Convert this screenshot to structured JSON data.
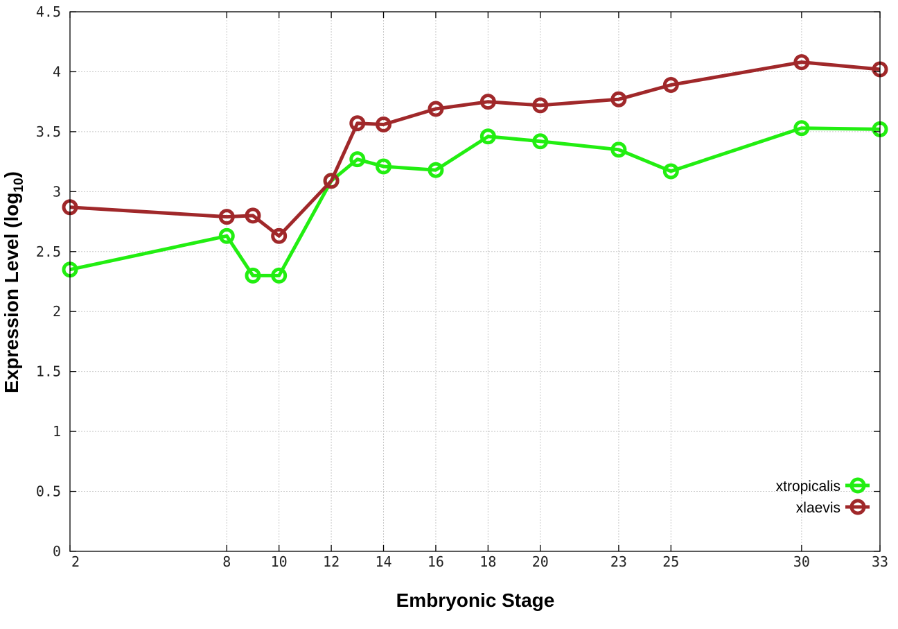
{
  "chart_data": {
    "type": "line",
    "title": "",
    "xlabel": "Embryonic Stage",
    "ylabel": "Expression Level (log",
    "ylabel_sub": "10",
    "ylabel_end": ")",
    "x": [
      2,
      8,
      9,
      10,
      12,
      13,
      14,
      16,
      18,
      20,
      23,
      25,
      30,
      33
    ],
    "x_tick_values": [
      2,
      8,
      10,
      12,
      14,
      16,
      18,
      20,
      23,
      25,
      30,
      33
    ],
    "x_tick_labels": [
      "2",
      "8",
      "10",
      "12",
      "14",
      "16",
      "18",
      "20",
      "23",
      "25",
      "30",
      "33"
    ],
    "xlim": [
      2,
      33
    ],
    "ylim": [
      0,
      4.5
    ],
    "y_tick_values": [
      0,
      0.5,
      1,
      1.5,
      2,
      2.5,
      3,
      3.5,
      4,
      4.5
    ],
    "y_tick_labels": [
      "0",
      "0.5",
      "1",
      "1.5",
      "2",
      "2.5",
      "3",
      "3.5",
      "4",
      "4.5"
    ],
    "grid": true,
    "legend_position": "bottom-right",
    "series": [
      {
        "name": "xtropicalis",
        "color": "#22ee11",
        "marker": "open-circle",
        "values": [
          2.35,
          2.63,
          2.3,
          2.3,
          3.09,
          3.27,
          3.21,
          3.18,
          3.46,
          3.42,
          3.35,
          3.17,
          3.53,
          3.52
        ]
      },
      {
        "name": "xlaevis",
        "color": "#a0282a",
        "marker": "open-circle",
        "values": [
          2.87,
          2.79,
          2.8,
          2.63,
          3.09,
          3.57,
          3.56,
          3.69,
          3.75,
          3.72,
          3.77,
          3.89,
          4.08,
          4.02
        ]
      }
    ]
  }
}
